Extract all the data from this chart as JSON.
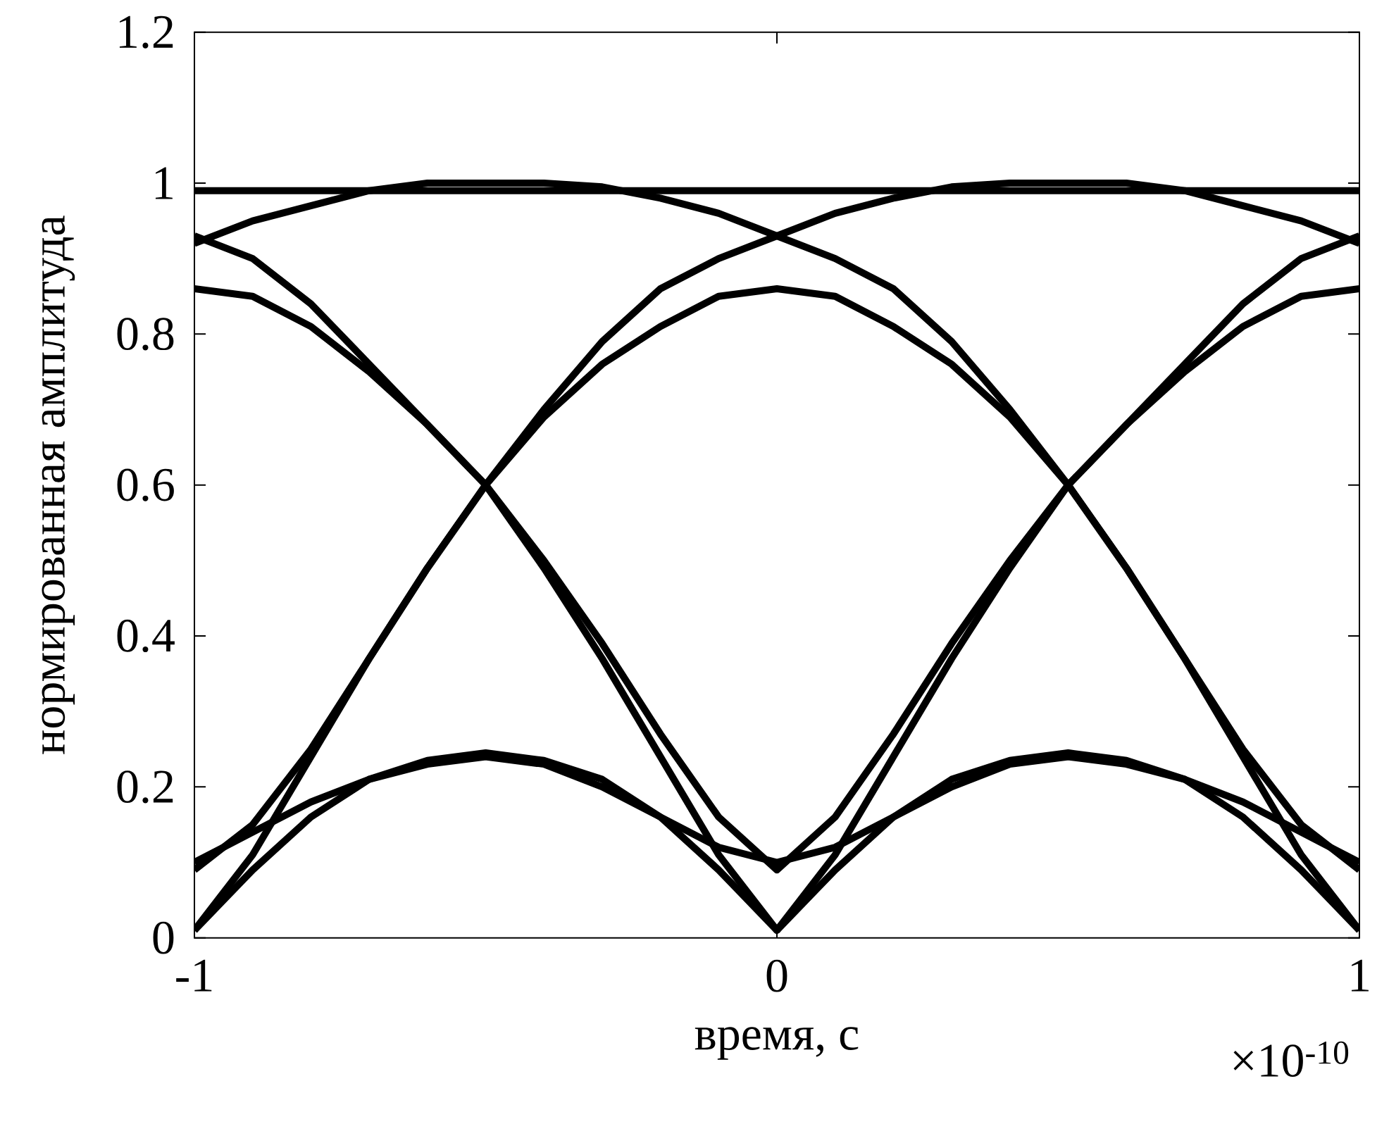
{
  "chart_data": {
    "type": "line",
    "xlabel": "время, с",
    "ylabel": "нормированная амплитуда",
    "annotations": [
      "×10$^{-10}$"
    ],
    "x": [
      -1,
      -0.9,
      -0.8,
      -0.7,
      -0.6,
      -0.5,
      -0.4,
      -0.3,
      -0.2,
      -0.1,
      0,
      0.1,
      0.2,
      0.3,
      0.4,
      0.5,
      0.6,
      0.7,
      0.8,
      0.9,
      1
    ],
    "xlim": [
      -1,
      1
    ],
    "xticks": [
      -1,
      0,
      1
    ],
    "ylim": [
      0,
      1.2
    ],
    "yticks": [
      0,
      0.2,
      0.4,
      0.6,
      0.8,
      1,
      1.2
    ],
    "marker": "none",
    "line_style": "solid",
    "series": [
      {
        "color": "#000000",
        "values": [
          0.99,
          0.99,
          0.99,
          0.99,
          0.99,
          0.99,
          0.99,
          0.99,
          0.99,
          0.99,
          0.99,
          0.99,
          0.99,
          0.99,
          0.99,
          0.99,
          0.99,
          0.99,
          0.99,
          0.99,
          0.99
        ]
      },
      {
        "color": "#000000",
        "values": [
          0.09,
          0.15,
          0.25,
          0.37,
          0.49,
          0.6,
          0.7,
          0.79,
          0.86,
          0.9,
          0.93,
          0.96,
          0.98,
          0.995,
          1.0,
          1.0,
          1.0,
          0.99,
          0.97,
          0.95,
          0.92
        ]
      },
      {
        "color": "#000000",
        "values": [
          0.92,
          0.95,
          0.97,
          0.99,
          1.0,
          1.0,
          1.0,
          0.995,
          0.98,
          0.96,
          0.93,
          0.9,
          0.86,
          0.79,
          0.7,
          0.6,
          0.49,
          0.37,
          0.25,
          0.15,
          0.09
        ]
      },
      {
        "color": "#000000",
        "values": [
          0.93,
          0.9,
          0.84,
          0.76,
          0.68,
          0.6,
          0.49,
          0.37,
          0.24,
          0.11,
          0.01,
          0.11,
          0.24,
          0.37,
          0.49,
          0.6,
          0.68,
          0.76,
          0.84,
          0.9,
          0.93
        ]
      },
      {
        "color": "#000000",
        "values": [
          0.01,
          0.11,
          0.24,
          0.37,
          0.49,
          0.6,
          0.69,
          0.76,
          0.81,
          0.85,
          0.86,
          0.85,
          0.81,
          0.76,
          0.69,
          0.6,
          0.49,
          0.37,
          0.24,
          0.11,
          0.01
        ]
      },
      {
        "color": "#000000",
        "values": [
          0.86,
          0.85,
          0.81,
          0.75,
          0.68,
          0.6,
          0.5,
          0.39,
          0.27,
          0.16,
          0.09,
          0.16,
          0.27,
          0.39,
          0.5,
          0.6,
          0.68,
          0.75,
          0.81,
          0.85,
          0.86
        ]
      },
      {
        "color": "#000000",
        "values": [
          0.01,
          0.09,
          0.16,
          0.21,
          0.235,
          0.245,
          0.235,
          0.21,
          0.16,
          0.09,
          0.01,
          0.09,
          0.16,
          0.21,
          0.235,
          0.245,
          0.235,
          0.21,
          0.16,
          0.09,
          0.01
        ]
      },
      {
        "color": "#000000",
        "values": [
          0.1,
          0.14,
          0.18,
          0.21,
          0.23,
          0.24,
          0.23,
          0.2,
          0.16,
          0.12,
          0.1,
          0.12,
          0.16,
          0.2,
          0.23,
          0.24,
          0.23,
          0.21,
          0.18,
          0.14,
          0.1
        ]
      }
    ]
  }
}
